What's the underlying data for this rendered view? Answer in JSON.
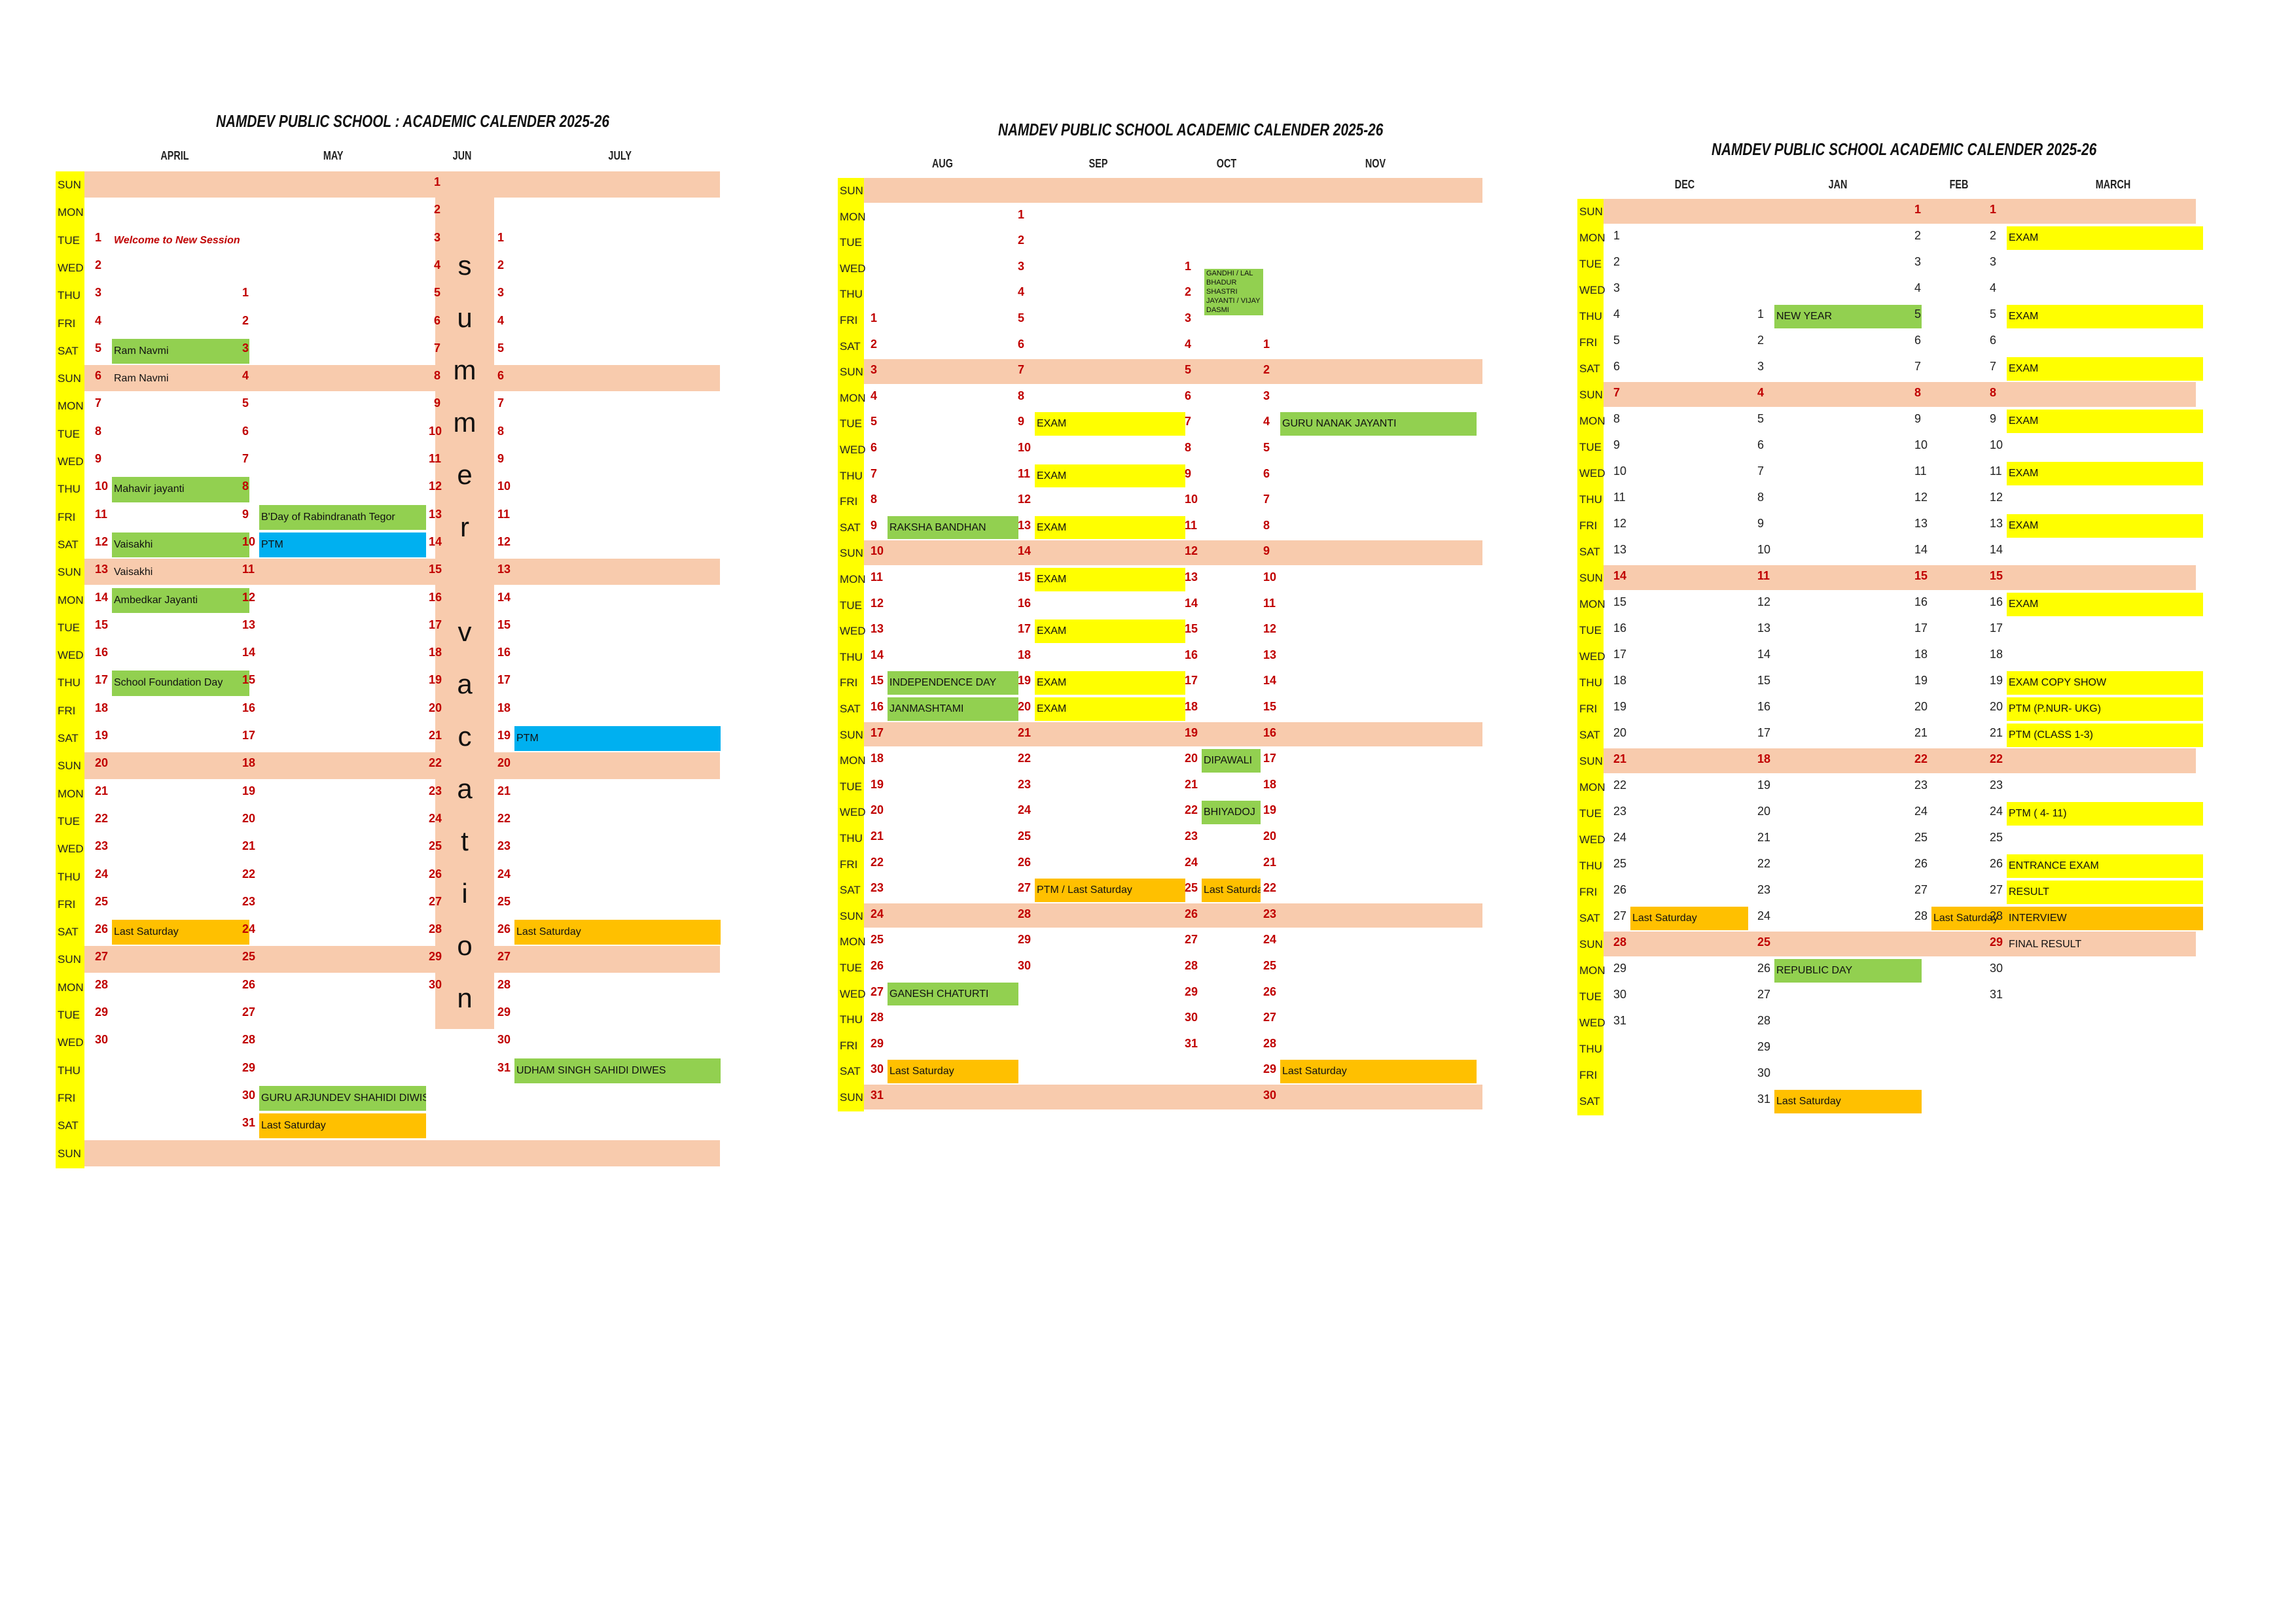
{
  "panels": [
    {
      "title": "NAMDEV PUBLIC SCHOOL :  ACADEMIC CALENDER 2025-26",
      "months": [
        "APRIL",
        "MAY",
        "JUN",
        "JULY"
      ],
      "days": [
        "SUN",
        "MON",
        "TUE",
        "WED",
        "THU",
        "FRI",
        "SAT",
        "SUN",
        "MON",
        "TUE",
        "WED",
        "THU",
        "FRI",
        "SAT",
        "SUN",
        "MON",
        "TUE",
        "WED",
        "THU",
        "FRI",
        "SAT",
        "SUN",
        "MON",
        "TUE",
        "WED",
        "THU",
        "FRI",
        "SAT",
        "SUN",
        "MON",
        "TUE",
        "WED",
        "THU",
        "FRI",
        "SAT",
        "SUN"
      ],
      "vacation_letters": [
        "s",
        "u",
        "m",
        "m",
        "e",
        "r",
        "",
        "v",
        "a",
        "c",
        "a",
        "t",
        "i",
        "o",
        "n"
      ]
    },
    {
      "title": "NAMDEV PUBLIC SCHOOL ACADEMIC CALENDER 2025-26",
      "months": [
        "AUG",
        "SEP",
        "OCT",
        "NOV"
      ],
      "days": [
        "SUN",
        "MON",
        "TUE",
        "WED",
        "THU",
        "FRI",
        "SAT",
        "SUN",
        "MON",
        "TUE",
        "WED",
        "THU",
        "FRI",
        "SAT",
        "SUN",
        "MON",
        "TUE",
        "WED",
        "THU",
        "FRI",
        "SAT",
        "SUN",
        "MON",
        "TUE",
        "WED",
        "THU",
        "FRI",
        "SAT",
        "SUN",
        "MON",
        "TUE",
        "WED",
        "THU",
        "FRI",
        "SAT",
        "SUN"
      ],
      "oct_note": "GANDHI / LAL BHADUR SHASTRI JAYANTI / VIJAY DASMI"
    },
    {
      "title": "NAMDEV PUBLIC SCHOOL    ACADEMIC CALENDER 2025-26",
      "months": [
        "DEC",
        "JAN",
        "FEB",
        "MARCH"
      ],
      "days": [
        "SUN",
        "MON",
        "TUE",
        "WED",
        "THU",
        "FRI",
        "SAT",
        "SUN",
        "MON",
        "TUE",
        "WED",
        "THU",
        "FRI",
        "SAT",
        "SUN",
        "MON",
        "TUE",
        "WED",
        "THU",
        "FRI",
        "SAT",
        "SUN",
        "MON",
        "TUE",
        "WED",
        "THU",
        "FRI",
        "SAT",
        "SUN",
        "MON",
        "TUE",
        "WED",
        "THU",
        "FRI",
        "SAT"
      ]
    }
  ],
  "cols": [
    {
      "p": 0,
      "c": 0,
      "start": 2,
      "len": 30,
      "ev": {
        "1": [
          "Welcome to New Session",
          "redtext"
        ],
        "5": [
          "Ram Navmi",
          "green"
        ],
        "6": [
          "Ram Navmi",
          ""
        ],
        "10": [
          "Mahavir jayanti",
          "green"
        ],
        "12": [
          "Vaisakhi",
          "green"
        ],
        "13": [
          "Vaisakhi",
          ""
        ],
        "14": [
          "Ambedkar Jayanti",
          "green"
        ],
        "17": [
          "School Foundation Day",
          "green"
        ],
        "26": [
          "Last Saturday",
          "orange"
        ]
      }
    },
    {
      "p": 0,
      "c": 1,
      "start": 4,
      "len": 31,
      "ev": {
        "9": [
          "B'Day of Rabindranath Tegor",
          "green"
        ],
        "10": [
          "PTM",
          "blue"
        ],
        "30": [
          "GURU ARJUNDEV SHAHIDI DIWISH",
          "green"
        ],
        "31": [
          "Last Saturday",
          "orange"
        ]
      }
    },
    {
      "p": 0,
      "c": 2,
      "start": 0,
      "len": 30,
      "ev": {}
    },
    {
      "p": 0,
      "c": 3,
      "start": 2,
      "len": 31,
      "ev": {
        "19": [
          "PTM",
          "blue"
        ],
        "26": [
          "Last Saturday",
          "orange"
        ],
        "31": [
          "UDHAM SINGH SAHIDI DIWES",
          "green"
        ]
      }
    },
    {
      "p": 1,
      "c": 0,
      "start": 5,
      "len": 31,
      "ev": {
        "9": [
          "RAKSHA BANDHAN",
          "green"
        ],
        "15": [
          "INDEPENDENCE DAY",
          "green"
        ],
        "16": [
          "JANMASHTAMI",
          "green"
        ],
        "27": [
          "GANESH CHATURTI",
          "green"
        ],
        "30": [
          "Last Saturday",
          "orange"
        ]
      }
    },
    {
      "p": 1,
      "c": 1,
      "start": 1,
      "len": 30,
      "ev": {
        "9": [
          "EXAM",
          "yellow"
        ],
        "11": [
          "EXAM",
          "yellow"
        ],
        "13": [
          "EXAM",
          "yellow"
        ],
        "15": [
          "EXAM",
          "yellow"
        ],
        "17": [
          "EXAM",
          "yellow"
        ],
        "19": [
          "EXAM",
          "yellow"
        ],
        "20": [
          "EXAM",
          "yellow"
        ],
        "27": [
          "PTM   /     Last Saturday",
          "orange"
        ]
      }
    },
    {
      "p": 1,
      "c": 2,
      "start": 3,
      "len": 31,
      "ev": {
        "20": [
          "DIPAWALI",
          "green"
        ],
        "22": [
          "BHIYADOJ",
          "green"
        ],
        "25": [
          "Last Saturday",
          "orange"
        ]
      }
    },
    {
      "p": 1,
      "c": 3,
      "start": 6,
      "len": 30,
      "ev": {
        "4": [
          "GURU NANAK JAYANTI",
          "green"
        ],
        "29": [
          "Last Saturday",
          "orange"
        ]
      }
    },
    {
      "p": 2,
      "c": 0,
      "start": 1,
      "len": 31,
      "ev": {
        "27": [
          "Last Saturday",
          "orange"
        ]
      }
    },
    {
      "p": 2,
      "c": 1,
      "start": 4,
      "len": 31,
      "ev": {
        "1": [
          "NEW YEAR",
          "green"
        ],
        "26": [
          "REPUBLIC DAY",
          "green"
        ],
        "31": [
          "Last Saturday",
          "orange"
        ]
      }
    },
    {
      "p": 2,
      "c": 2,
      "start": 0,
      "len": 28,
      "ev": {
        "28": [
          "Last Saturday",
          "orange"
        ]
      }
    },
    {
      "p": 2,
      "c": 3,
      "start": 0,
      "len": 31,
      "ev": {
        "2": [
          "EXAM",
          "yellow"
        ],
        "5": [
          "EXAM",
          "yellow"
        ],
        "7": [
          "EXAM",
          "yellow"
        ],
        "9": [
          "EXAM",
          "yellow"
        ],
        "11": [
          "EXAM",
          "yellow"
        ],
        "13": [
          "EXAM",
          "yellow"
        ],
        "16": [
          "EXAM",
          "yellow"
        ],
        "19": [
          "EXAM COPY SHOW",
          "yellow"
        ],
        "20": [
          "PTM (P.NUR- UKG)",
          "yellow"
        ],
        "21": [
          "PTM (CLASS 1-3)",
          "yellow"
        ],
        "24": [
          "PTM ( 4- 11)",
          "yellow"
        ],
        "26": [
          "ENTRANCE EXAM",
          "yellow"
        ],
        "27": [
          "RESULT",
          "yellow"
        ],
        "28": [
          "INTERVIEW",
          "orange"
        ],
        "29": [
          "FINAL RESULT",
          ""
        ]
      }
    }
  ]
}
